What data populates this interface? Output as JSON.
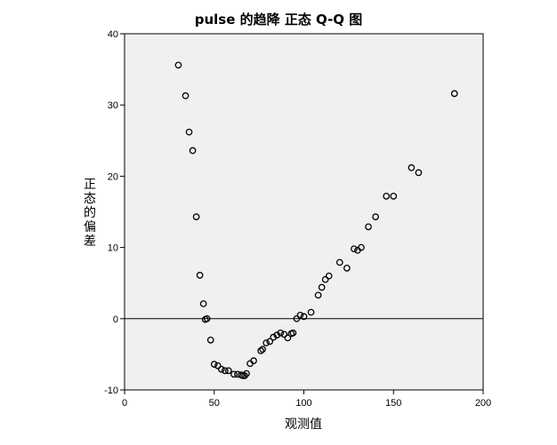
{
  "chart_data": {
    "type": "scatter",
    "title": "pulse 的趋降 正态 Q-Q 图",
    "xlabel": "观测值",
    "ylabel": "正态的偏差",
    "xlim": [
      0,
      200
    ],
    "ylim": [
      -10,
      40
    ],
    "xticks": [
      0,
      50,
      100,
      150,
      200
    ],
    "yticks": [
      -10,
      0,
      10,
      20,
      30,
      40
    ],
    "x_tick_labels": [
      "0",
      "50",
      "100",
      "150",
      "200"
    ],
    "y_tick_labels": [
      "-10",
      "0",
      "10",
      "20",
      "30",
      "40"
    ],
    "reference_line_y": 0,
    "grid": false,
    "colors": {
      "plot_background": "#f0f0f0",
      "marker": "#000000",
      "axis": "#000000"
    },
    "points": [
      [
        30,
        35.6
      ],
      [
        34,
        31.3
      ],
      [
        36,
        26.2
      ],
      [
        38,
        23.6
      ],
      [
        40,
        14.3
      ],
      [
        42,
        6.1
      ],
      [
        44,
        2.1
      ],
      [
        45,
        -0.1
      ],
      [
        46,
        0.0
      ],
      [
        48,
        -3.0
      ],
      [
        50,
        -6.4
      ],
      [
        52,
        -6.6
      ],
      [
        54,
        -7.1
      ],
      [
        56,
        -7.3
      ],
      [
        58,
        -7.3
      ],
      [
        61,
        -7.8
      ],
      [
        63,
        -7.8
      ],
      [
        65,
        -7.9
      ],
      [
        66,
        -8.0
      ],
      [
        67,
        -8.0
      ],
      [
        68,
        -7.7
      ],
      [
        70,
        -6.3
      ],
      [
        72,
        -5.9
      ],
      [
        76,
        -4.5
      ],
      [
        77,
        -4.3
      ],
      [
        79,
        -3.4
      ],
      [
        81,
        -3.2
      ],
      [
        83,
        -2.6
      ],
      [
        85,
        -2.3
      ],
      [
        87,
        -2.0
      ],
      [
        89,
        -2.2
      ],
      [
        91,
        -2.7
      ],
      [
        93,
        -2.1
      ],
      [
        94,
        -2.0
      ],
      [
        96,
        0.0
      ],
      [
        98,
        0.5
      ],
      [
        100,
        0.3
      ],
      [
        104,
        0.9
      ],
      [
        108,
        3.3
      ],
      [
        110,
        4.4
      ],
      [
        112,
        5.5
      ],
      [
        114,
        6.0
      ],
      [
        120,
        7.9
      ],
      [
        124,
        7.1
      ],
      [
        128,
        9.8
      ],
      [
        130,
        9.6
      ],
      [
        132,
        10.0
      ],
      [
        136,
        12.9
      ],
      [
        140,
        14.3
      ],
      [
        146,
        17.2
      ],
      [
        150,
        17.2
      ],
      [
        160,
        21.2
      ],
      [
        164,
        20.5
      ],
      [
        184,
        31.6
      ]
    ]
  }
}
